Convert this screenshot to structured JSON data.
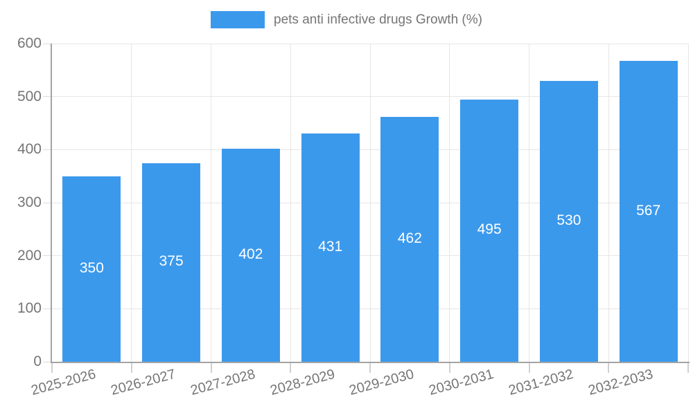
{
  "chart_data": {
    "type": "bar",
    "title": "pets anti infective drugs Growth (%)",
    "categories": [
      "2025-2026",
      "2026-2027",
      "2027-2028",
      "2028-2029",
      "2029-2030",
      "2030-2031",
      "2031-2032",
      "2032-2033"
    ],
    "series": [
      {
        "name": "pets anti infective drugs Growth (%)",
        "values": [
          350,
          375,
          402,
          431,
          462,
          495,
          530,
          567
        ]
      }
    ],
    "xlabel": "",
    "ylabel": "",
    "ylim": [
      0,
      600
    ],
    "yticks": [
      0,
      100,
      200,
      300,
      400,
      500,
      600
    ],
    "grid": true,
    "legend_position": "top",
    "bar_color": "#3B99EC",
    "value_label_color": "#ffffff",
    "axis_text_color": "#757575",
    "grid_color": "#e6e6e6",
    "axis_line_color": "#a3a3a3",
    "background_color": "#ffffff"
  }
}
